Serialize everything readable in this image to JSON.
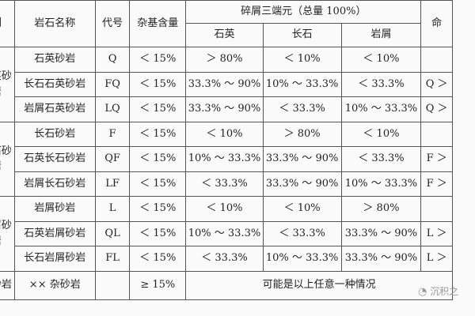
{
  "header": {
    "col_example": "例",
    "col_name": "岩石名称",
    "col_code": "代号",
    "col_matrix": "杂基含量",
    "col_debris_group": "碎屑三端元（总量 100%）",
    "col_quartz": "石英",
    "col_feldspar": "长石",
    "col_lithic": "岩屑",
    "col_last": "命"
  },
  "groups": [
    {
      "category": "石英砂岩",
      "rows": [
        {
          "name": "石英砂岩",
          "code": "Q",
          "matrix": "＜ 15%",
          "quartz": "＞ 80%",
          "feldspar": "＜ 10%",
          "lithic": "＜ 10%",
          "extra": ""
        },
        {
          "name": "长石石英砂岩",
          "code": "FQ",
          "matrix": "＜ 15%",
          "quartz": "33.3% ～ 90%",
          "feldspar": "10% ～ 33.3%",
          "lithic": "＜ 33.3%",
          "extra": "Q ＞"
        },
        {
          "name": "岩屑石英砂岩",
          "code": "LQ",
          "matrix": "＜ 15%",
          "quartz": "33.3% ～ 90%",
          "feldspar": "＜ 33.3%",
          "lithic": "10% ～ 33.3%",
          "extra": "Q ＞"
        }
      ]
    },
    {
      "category": "长石砂岩",
      "rows": [
        {
          "name": "长石砂岩",
          "code": "F",
          "matrix": "＜ 15%",
          "quartz": "＜ 10%",
          "feldspar": "＞ 80%",
          "lithic": "＜ 10%",
          "extra": ""
        },
        {
          "name": "石英长石砂岩",
          "code": "QF",
          "matrix": "＜ 15%",
          "quartz": "10% ～ 33.3%",
          "feldspar": "33.3% ～ 90%",
          "lithic": "＜ 33.3%",
          "extra": "F ＞"
        },
        {
          "name": "岩屑长石砂岩",
          "code": "LF",
          "matrix": "＜ 15%",
          "quartz": "＜ 33.3%",
          "feldspar": "33.3% ～ 90%",
          "lithic": "10% ～ 33.3%",
          "extra": "F ＞"
        }
      ]
    },
    {
      "category": "岩屑砂岩",
      "rows": [
        {
          "name": "岩屑砂岩",
          "code": "L",
          "matrix": "＜ 15%",
          "quartz": "＜ 10%",
          "feldspar": "＜ 10%",
          "lithic": "＞ 80%",
          "extra": ""
        },
        {
          "name": "石英岩屑砂岩",
          "code": "QL",
          "matrix": "＜ 15%",
          "quartz": "10% ～ 33.3%",
          "feldspar": "＜ 33.3%",
          "lithic": "33.3% ～ 90%",
          "extra": "L ＞"
        },
        {
          "name": "长石岩屑砂岩",
          "code": "FL",
          "matrix": "＜ 15%",
          "quartz": "＜ 33.3%",
          "feldspar": "10% ～ 33.3%",
          "lithic": "33.3% ～ 90%",
          "extra": "L ＞"
        }
      ]
    }
  ],
  "last_row": {
    "category": "杂砂岩",
    "name": "×× 杂砂岩",
    "code": "",
    "matrix": "≥ 15%",
    "note": "可能是以上任意一种情况"
  },
  "watermark": {
    "icon": "wechat-icon",
    "text": "沉积之"
  }
}
